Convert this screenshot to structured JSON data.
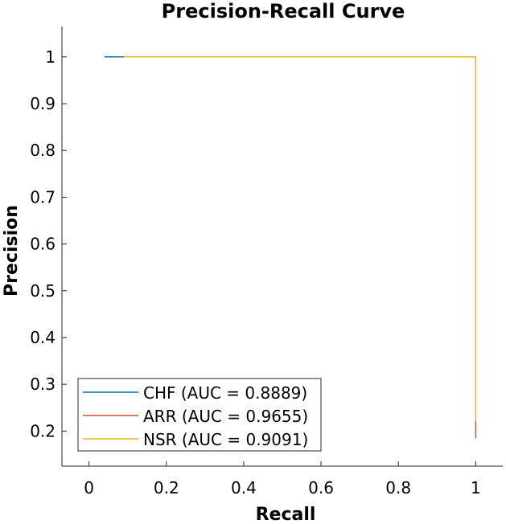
{
  "chart_data": {
    "type": "line",
    "title": "Precision-Recall Curve",
    "xlabel": "Recall",
    "ylabel": "Precision",
    "xlim": [
      -0.07,
      1.07
    ],
    "ylim": [
      0.125,
      1.065
    ],
    "xticks": [
      0,
      0.2,
      0.4,
      0.6,
      0.8,
      1
    ],
    "xtick_labels": [
      "0",
      "0.2",
      "0.4",
      "0.6",
      "0.8",
      "1"
    ],
    "yticks": [
      0.2,
      0.3,
      0.4,
      0.5,
      0.6,
      0.7,
      0.8,
      0.9,
      1
    ],
    "ytick_labels": [
      "0.2",
      "0.3",
      "0.4",
      "0.5",
      "0.6",
      "0.7",
      "0.8",
      "0.9",
      "1"
    ],
    "grid": false,
    "legend_position": "bottom-left",
    "series": [
      {
        "name": "CHF (AUC = 0.8889)",
        "color": "#0072BD",
        "x": [
          0.04,
          0.09
        ],
        "y": [
          1,
          1
        ]
      },
      {
        "name": "ARR (AUC = 0.9655)",
        "color": "#D95319",
        "x": [
          1,
          1
        ],
        "y": [
          0.222,
          0.185
        ]
      },
      {
        "name": "NSR (AUC = 0.9091)",
        "color": "#EDB120",
        "x": [
          0.09,
          1,
          1
        ],
        "y": [
          1,
          1,
          0.222
        ]
      }
    ]
  }
}
